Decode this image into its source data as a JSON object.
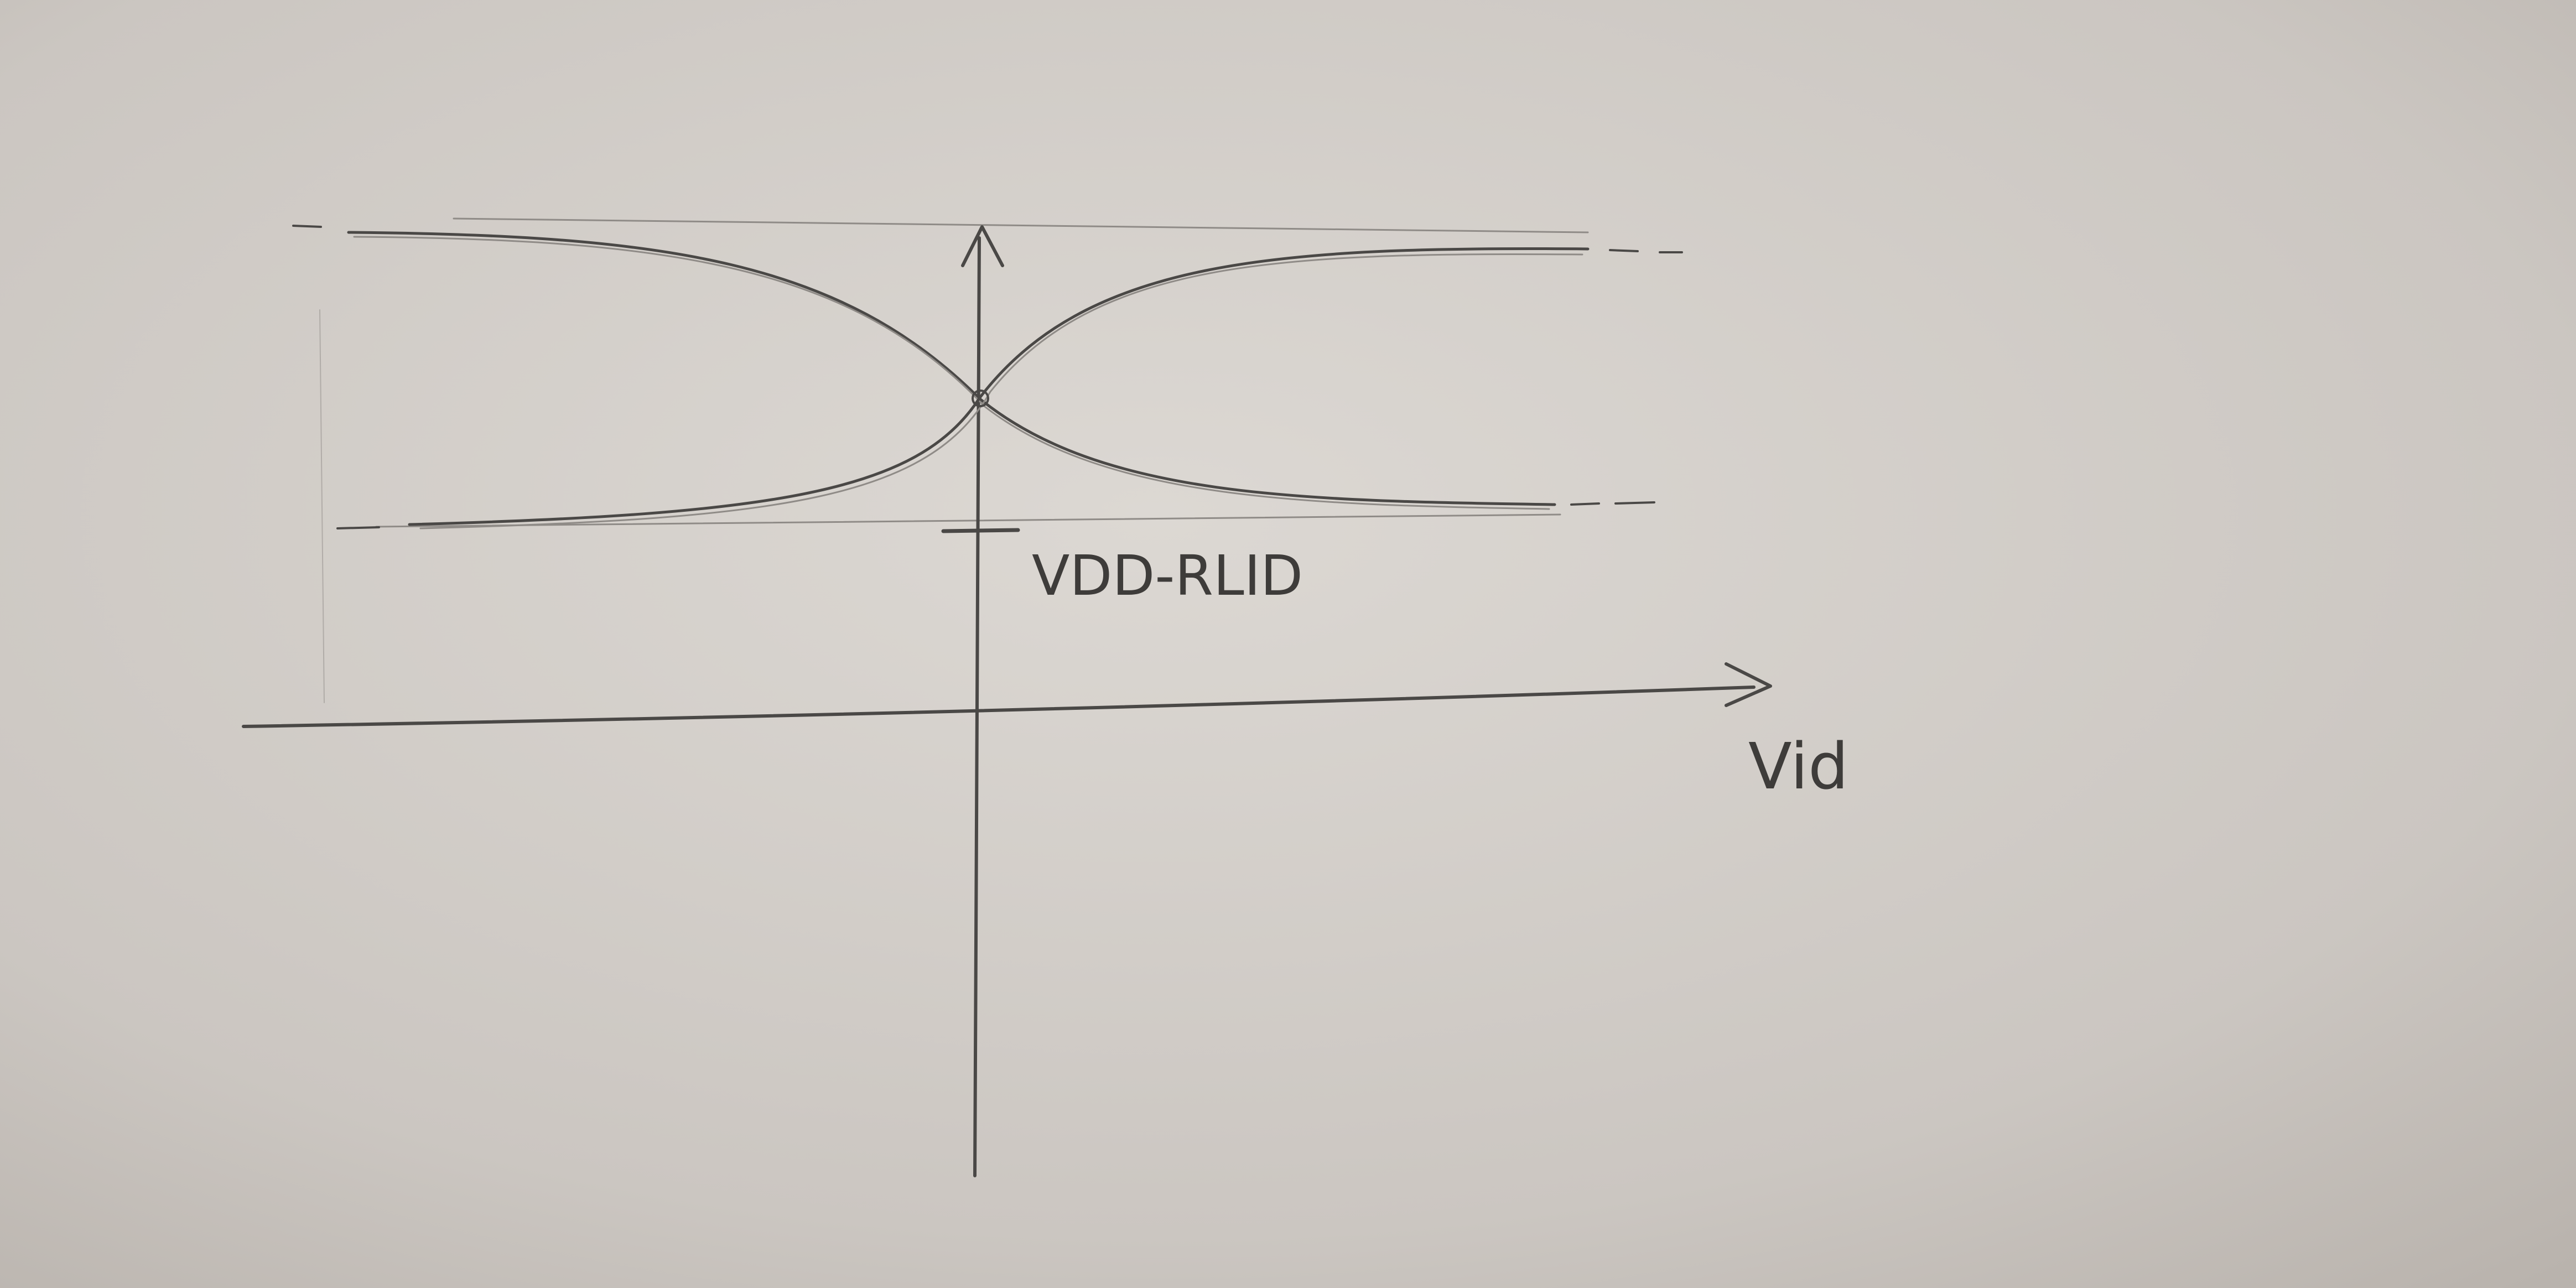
{
  "diagram": {
    "tick_label": "VDD-RLID",
    "x_axis_label": "Vid"
  },
  "colors": {
    "paper": "#d4cfca",
    "pencil": "#4a4846",
    "pencil_light": "#8f8b87"
  }
}
